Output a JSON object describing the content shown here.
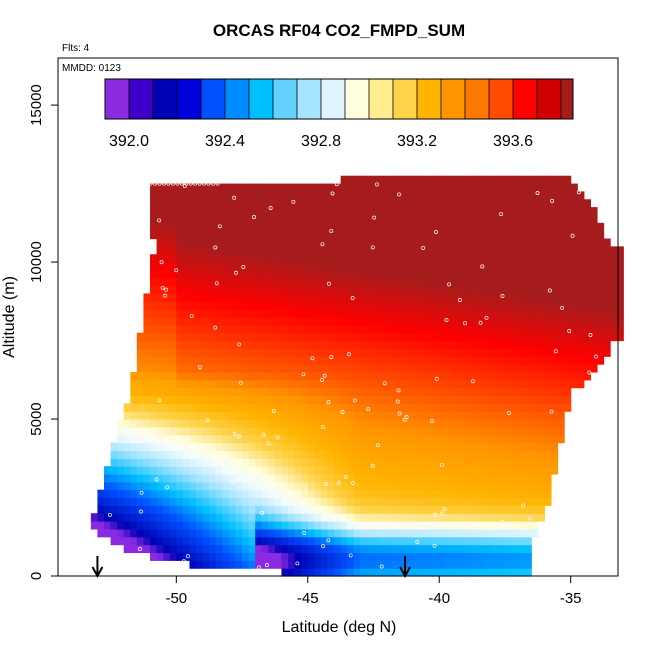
{
  "chart_data": {
    "type": "heatmap",
    "title": "ORCAS RF04 CO2_FMPD_SUM",
    "note_flights": "Flts: 4",
    "note_date": "MMDD: 0123",
    "xlabel": "Latitude (deg N)",
    "ylabel": "Altitude (m)",
    "xlim": [
      -54.5,
      -33.2
    ],
    "ylim": [
      0,
      16500
    ],
    "xticks": [
      -50,
      -45,
      -40,
      -35
    ],
    "yticks": [
      0,
      5000,
      10000,
      15000
    ],
    "colorbar": {
      "range": [
        391.9,
        393.85
      ],
      "ticks": [
        392.0,
        392.4,
        392.8,
        393.2,
        393.6
      ],
      "tick_labels": [
        "392.0",
        "392.4",
        "392.8",
        "393.2",
        "393.6"
      ],
      "boundaries": [
        391.9,
        392.0,
        392.1,
        392.2,
        392.3,
        392.4,
        392.5,
        392.6,
        392.7,
        392.8,
        392.9,
        393.0,
        393.1,
        393.2,
        393.3,
        393.4,
        393.5,
        393.6,
        393.7,
        393.8,
        393.85
      ],
      "colors": [
        "#8a2be2",
        "#3d00c8",
        "#0000b4",
        "#0000dc",
        "#0050ff",
        "#008cff",
        "#00bfff",
        "#64d2ff",
        "#a6e4ff",
        "#e0f4ff",
        "#ffffe0",
        "#ffee90",
        "#ffd34a",
        "#ffb400",
        "#ff9600",
        "#ff7800",
        "#ff4b00",
        "#ff0000",
        "#d20000",
        "#a61c1c"
      ]
    },
    "arrows_x": [
      -53.0,
      -41.3
    ],
    "grid_stops": [
      {
        "value": 391.9,
        "color": "#8a2be2"
      },
      {
        "value": 392.0,
        "color": "#0000b4"
      },
      {
        "value": 392.3,
        "color": "#0050ff"
      },
      {
        "value": 392.5,
        "color": "#00bfff"
      },
      {
        "value": 392.7,
        "color": "#a6e4ff"
      },
      {
        "value": 392.85,
        "color": "#f4fbff"
      },
      {
        "value": 392.95,
        "color": "#ffffe0"
      },
      {
        "value": 393.1,
        "color": "#ffd34a"
      },
      {
        "value": 393.25,
        "color": "#ffb400"
      },
      {
        "value": 393.4,
        "color": "#ff9600"
      },
      {
        "value": 393.55,
        "color": "#ff4b00"
      },
      {
        "value": 393.7,
        "color": "#ff0000"
      },
      {
        "value": 393.85,
        "color": "#a61c1c"
      }
    ],
    "domain": {
      "top_altitude": [
        [
          -52.0,
          12500
        ],
        [
          -48.5,
          12450
        ],
        [
          -45.0,
          12600
        ],
        [
          -40.0,
          12700
        ],
        [
          -38.0,
          12850
        ],
        [
          -36.0,
          12850
        ],
        [
          -35.0,
          12700
        ],
        [
          -34.0,
          11500
        ],
        [
          -33.4,
          10400
        ]
      ],
      "bottom_altitude": [
        [
          -53.3,
          1500
        ],
        [
          -52.0,
          900
        ],
        [
          -50.0,
          400
        ],
        [
          -47.0,
          250
        ],
        [
          -45.0,
          0
        ],
        [
          -41.0,
          0
        ],
        [
          -36.6,
          0
        ],
        [
          -36.5,
          1000
        ],
        [
          -35.8,
          2500
        ],
        [
          -35.0,
          5800
        ],
        [
          -34.0,
          6500
        ],
        [
          -33.4,
          7500
        ]
      ],
      "west_edge": [
        [
          0,
          -53.3
        ],
        [
          1500,
          -53.3
        ],
        [
          2500,
          -53.0
        ],
        [
          3500,
          -52.6
        ],
        [
          4500,
          -52.3
        ],
        [
          5500,
          -51.9
        ],
        [
          7000,
          -51.5
        ],
        [
          8000,
          -51.3
        ],
        [
          9000,
          -51.1
        ],
        [
          10000,
          -51.0
        ],
        [
          10500,
          -50.7
        ],
        [
          11000,
          -51.0
        ],
        [
          12500,
          -51.0
        ]
      ]
    }
  }
}
